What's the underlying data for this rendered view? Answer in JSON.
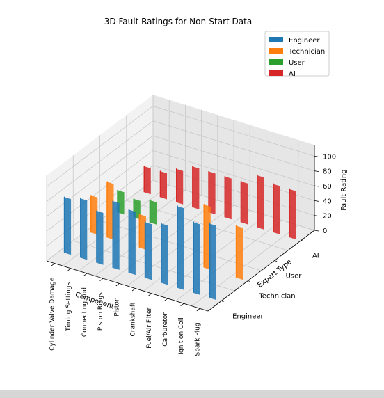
{
  "chart_data": {
    "type": "bar3d",
    "title": "3D Fault Ratings for Non-Start Data",
    "xlabel": "Component",
    "ylabel": "Expert Type",
    "zlabel": "Fault Rating",
    "categories": [
      "Spark Plug",
      "Ignition Coil",
      "Carburetor",
      "Fuel/Air Filter",
      "Crankshaft",
      "Piston",
      "Piston Rings",
      "Connecting Rod",
      "Timing Settings",
      "Cylinder Valve Damage"
    ],
    "expert_types": [
      "Engineer",
      "Technician",
      "User",
      "AI"
    ],
    "zticks": [
      0,
      20,
      40,
      60,
      80,
      100
    ],
    "zlim": [
      0,
      115
    ],
    "series": [
      {
        "name": "Engineer",
        "color": "#1f77b4",
        "values": [
          100,
          95,
          110,
          80,
          75,
          85,
          90,
          70,
          80,
          75
        ]
      },
      {
        "name": "Technician",
        "color": "#ff7f0e",
        "values": [
          70,
          0,
          85,
          0,
          0,
          0,
          45,
          0,
          75,
          50
        ]
      },
      {
        "name": "User",
        "color": "#2ca02c",
        "values": [
          0,
          0,
          0,
          0,
          0,
          0,
          0,
          30,
          25,
          30
        ]
      },
      {
        "name": "AI",
        "color": "#d62728",
        "values": [
          65,
          65,
          70,
          55,
          55,
          55,
          55,
          45,
          35,
          35
        ]
      }
    ],
    "legend": {
      "position": "top-right",
      "entries": [
        "Engineer",
        "Technician",
        "User",
        "AI"
      ]
    },
    "grid": true
  }
}
